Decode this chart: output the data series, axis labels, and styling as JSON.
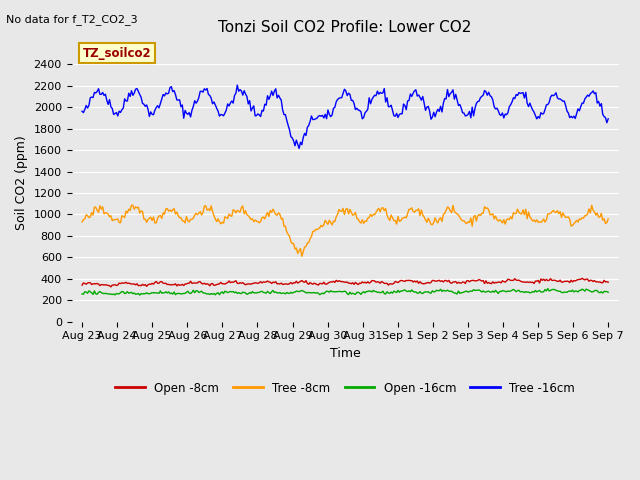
{
  "title": "Tonzi Soil CO2 Profile: Lower CO2",
  "subtitle": "No data for f_T2_CO2_3",
  "xlabel": "Time",
  "ylabel": "Soil CO2 (ppm)",
  "ylim": [
    0,
    2600
  ],
  "yticks": [
    0,
    200,
    400,
    600,
    800,
    1000,
    1200,
    1400,
    1600,
    1800,
    2000,
    2200,
    2400
  ],
  "legend_label": "TZ_soilco2",
  "plot_bg_color": "#e8e8e8",
  "line_colors": {
    "open_8cm": "#cc0000",
    "tree_8cm": "#ff9900",
    "open_16cm": "#00aa00",
    "tree_16cm": "#0000ff"
  },
  "x_tick_labels": [
    "Aug 23",
    "Aug 24",
    "Aug 25",
    "Aug 26",
    "Aug 27",
    "Aug 28",
    "Aug 29",
    "Aug 30",
    "Aug 31",
    "Sep 1",
    "Sep 2",
    "Sep 3",
    "Sep 4",
    "Sep 5",
    "Sep 6",
    "Sep 7"
  ],
  "seed": 42
}
